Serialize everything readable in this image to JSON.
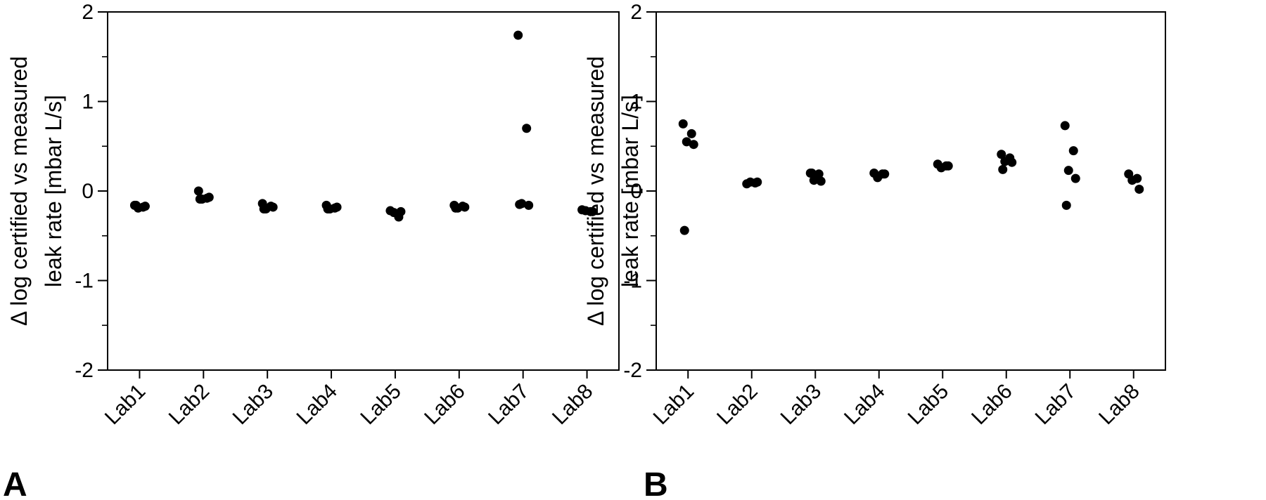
{
  "chart_data": [
    {
      "type": "scatter",
      "panel_label": "A",
      "title": "",
      "xlabel": "",
      "ylabel_lines": [
        "Δ log certified vs measured",
        "leak rate [mbar L/s]"
      ],
      "categories": [
        "Lab1",
        "Lab2",
        "Lab3",
        "Lab4",
        "Lab5",
        "Lab6",
        "Lab7",
        "Lab8"
      ],
      "ylim": [
        -2,
        2
      ],
      "yticks": [
        -2,
        -1,
        0,
        1,
        2
      ],
      "ytick_labels": [
        "-2",
        "-1",
        "0",
        "1",
        "2"
      ],
      "y_minor_step": 0.5,
      "grid": false,
      "legend": "none",
      "point_color": "#000000",
      "series": [
        {
          "points": [
            {
              "category": "Lab1",
              "y": -0.16
            },
            {
              "category": "Lab1",
              "y": -0.18
            },
            {
              "category": "Lab1",
              "y": -0.19
            },
            {
              "category": "Lab1",
              "y": -0.17
            },
            {
              "category": "Lab1",
              "y": -0.16
            },
            {
              "category": "Lab2",
              "y": 0.0
            },
            {
              "category": "Lab2",
              "y": -0.08
            },
            {
              "category": "Lab2",
              "y": -0.09
            },
            {
              "category": "Lab2",
              "y": -0.07
            },
            {
              "category": "Lab2",
              "y": -0.09
            },
            {
              "category": "Lab3",
              "y": -0.14
            },
            {
              "category": "Lab3",
              "y": -0.17
            },
            {
              "category": "Lab3",
              "y": -0.2
            },
            {
              "category": "Lab3",
              "y": -0.18
            },
            {
              "category": "Lab3",
              "y": -0.2
            },
            {
              "category": "Lab4",
              "y": -0.16
            },
            {
              "category": "Lab4",
              "y": -0.19
            },
            {
              "category": "Lab4",
              "y": -0.2
            },
            {
              "category": "Lab4",
              "y": -0.18
            },
            {
              "category": "Lab4",
              "y": -0.2
            },
            {
              "category": "Lab5",
              "y": -0.22
            },
            {
              "category": "Lab5",
              "y": -0.29
            },
            {
              "category": "Lab5",
              "y": -0.24
            },
            {
              "category": "Lab5",
              "y": -0.23
            },
            {
              "category": "Lab6",
              "y": -0.16
            },
            {
              "category": "Lab6",
              "y": -0.17
            },
            {
              "category": "Lab6",
              "y": -0.19
            },
            {
              "category": "Lab6",
              "y": -0.18
            },
            {
              "category": "Lab6",
              "y": -0.19
            },
            {
              "category": "Lab7",
              "y": 1.74
            },
            {
              "category": "Lab7",
              "y": 0.7
            },
            {
              "category": "Lab7",
              "y": -0.14
            },
            {
              "category": "Lab7",
              "y": -0.16
            },
            {
              "category": "Lab7",
              "y": -0.15
            },
            {
              "category": "Lab8",
              "y": -0.21
            },
            {
              "category": "Lab8",
              "y": -0.23
            },
            {
              "category": "Lab8",
              "y": -0.22
            },
            {
              "category": "Lab8",
              "y": -0.23
            }
          ]
        }
      ]
    },
    {
      "type": "scatter",
      "panel_label": "B",
      "title": "",
      "xlabel": "",
      "ylabel_lines": [
        "Δ log certified vs measured",
        "leak rate [mbar L/s]"
      ],
      "categories": [
        "Lab1",
        "Lab2",
        "Lab3",
        "Lab4",
        "Lab5",
        "Lab6",
        "Lab7",
        "Lab8"
      ],
      "ylim": [
        -2,
        2
      ],
      "yticks": [
        -2,
        -1,
        0,
        1,
        2
      ],
      "ytick_labels": [
        "-2",
        "-1",
        "0",
        "1",
        "2"
      ],
      "y_minor_step": 0.5,
      "grid": false,
      "legend": "none",
      "point_color": "#000000",
      "series": [
        {
          "points": [
            {
              "category": "Lab1",
              "y": 0.75
            },
            {
              "category": "Lab1",
              "y": 0.64
            },
            {
              "category": "Lab1",
              "y": 0.55
            },
            {
              "category": "Lab1",
              "y": 0.52
            },
            {
              "category": "Lab1",
              "y": -0.44
            },
            {
              "category": "Lab2",
              "y": 0.08
            },
            {
              "category": "Lab2",
              "y": 0.09
            },
            {
              "category": "Lab2",
              "y": 0.1
            },
            {
              "category": "Lab2",
              "y": 0.1
            },
            {
              "category": "Lab3",
              "y": 0.2
            },
            {
              "category": "Lab3",
              "y": 0.19
            },
            {
              "category": "Lab3",
              "y": 0.12
            },
            {
              "category": "Lab3",
              "y": 0.11
            },
            {
              "category": "Lab3",
              "y": 0.2
            },
            {
              "category": "Lab4",
              "y": 0.2
            },
            {
              "category": "Lab4",
              "y": 0.19
            },
            {
              "category": "Lab4",
              "y": 0.15
            },
            {
              "category": "Lab4",
              "y": 0.19
            },
            {
              "category": "Lab5",
              "y": 0.3
            },
            {
              "category": "Lab5",
              "y": 0.28
            },
            {
              "category": "Lab5",
              "y": 0.26
            },
            {
              "category": "Lab5",
              "y": 0.28
            },
            {
              "category": "Lab6",
              "y": 0.41
            },
            {
              "category": "Lab6",
              "y": 0.37
            },
            {
              "category": "Lab6",
              "y": 0.33
            },
            {
              "category": "Lab6",
              "y": 0.32
            },
            {
              "category": "Lab6",
              "y": 0.24
            },
            {
              "category": "Lab7",
              "y": 0.73
            },
            {
              "category": "Lab7",
              "y": 0.45
            },
            {
              "category": "Lab7",
              "y": 0.23
            },
            {
              "category": "Lab7",
              "y": 0.14
            },
            {
              "category": "Lab7",
              "y": -0.16
            },
            {
              "category": "Lab8",
              "y": 0.19
            },
            {
              "category": "Lab8",
              "y": 0.14
            },
            {
              "category": "Lab8",
              "y": 0.12
            },
            {
              "category": "Lab8",
              "y": 0.02
            }
          ]
        }
      ]
    }
  ]
}
